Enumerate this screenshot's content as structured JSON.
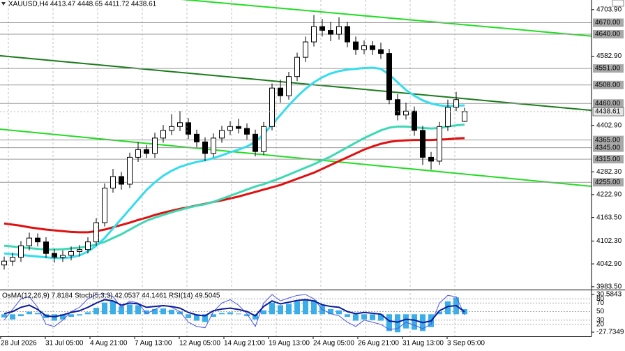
{
  "chart_data": {
    "type": "candlestick",
    "title": "XAUUSD,H4  4413.47 4448.65 4411.72 4438.61",
    "open": [
      4040,
      4050,
      4060,
      4090,
      4110,
      4100,
      4070,
      4060,
      4065,
      4075,
      4080,
      4100,
      4150,
      4240,
      4270,
      4250,
      4320,
      4340,
      4330,
      4370,
      4390,
      4400,
      4410,
      4380,
      4360,
      4330,
      4370,
      4390,
      4400,
      4395,
      4380,
      4335,
      4400,
      4500,
      4480,
      4530,
      4580,
      4620,
      4660,
      4650,
      4640,
      4660,
      4620,
      4600,
      4610,
      4600,
      4590,
      4470,
      4430,
      4440,
      4390,
      4320,
      4310,
      4400,
      4450,
      4413.47
    ],
    "high": [
      4062,
      4072,
      4102,
      4124,
      4122,
      4112,
      4082,
      4078,
      4088,
      4092,
      4112,
      4162,
      4252,
      4290,
      4282,
      4332,
      4360,
      4352,
      4384,
      4404,
      4432,
      4440,
      4422,
      4392,
      4372,
      4382,
      4402,
      4414,
      4420,
      4408,
      4392,
      4412,
      4512,
      4522,
      4542,
      4592,
      4634,
      4690,
      4680,
      4672,
      4684,
      4672,
      4634,
      4624,
      4622,
      4618,
      4602,
      4484,
      4462,
      4452,
      4402,
      4334,
      4412,
      4470,
      4490,
      4448.65
    ],
    "low": [
      4028,
      4038,
      4048,
      4078,
      4088,
      4058,
      4046,
      4048,
      4052,
      4062,
      4070,
      4090,
      4140,
      4228,
      4236,
      4240,
      4308,
      4318,
      4318,
      4358,
      4378,
      4388,
      4368,
      4346,
      4310,
      4320,
      4358,
      4378,
      4382,
      4366,
      4322,
      4326,
      4390,
      4462,
      4470,
      4518,
      4568,
      4608,
      4634,
      4622,
      4626,
      4606,
      4586,
      4588,
      4586,
      4576,
      4458,
      4416,
      4418,
      4376,
      4300,
      4288,
      4300,
      4388,
      4440,
      4411.72
    ],
    "close": [
      4050,
      4060,
      4090,
      4110,
      4100,
      4070,
      4060,
      4065,
      4075,
      4080,
      4100,
      4150,
      4240,
      4270,
      4250,
      4320,
      4340,
      4330,
      4370,
      4390,
      4400,
      4410,
      4380,
      4360,
      4330,
      4370,
      4390,
      4400,
      4395,
      4380,
      4335,
      4400,
      4500,
      4480,
      4530,
      4580,
      4620,
      4660,
      4650,
      4640,
      4660,
      4620,
      4600,
      4610,
      4600,
      4590,
      4470,
      4430,
      4440,
      4390,
      4320,
      4310,
      4400,
      4450,
      4470,
      4438.61
    ],
    "up_color": "#ffffff",
    "down_color": "#000000",
    "ylim": [
      3976,
      4729
    ],
    "yticks": [
      {
        "value": 4703.9,
        "label": "4703.90"
      },
      {
        "value": 4582.9,
        "label": "4582.90"
      },
      {
        "value": 4402.9,
        "label": "4402.90"
      },
      {
        "value": 4282.3,
        "label": "4282.30"
      },
      {
        "value": 4222.9,
        "label": "4222.90"
      },
      {
        "value": 4163.5,
        "label": "4163.50"
      },
      {
        "value": 4102.3,
        "label": "4102.30"
      },
      {
        "value": 4042.9,
        "label": "4042.90"
      },
      {
        "value": 3983.5,
        "label": "3983.50"
      }
    ],
    "levels": [
      {
        "value": 4670,
        "label": "4670.00"
      },
      {
        "value": 4640,
        "label": "4640.00"
      },
      {
        "value": 4551,
        "label": "4551.00"
      },
      {
        "value": 4508,
        "label": "4508.00"
      },
      {
        "value": 4460,
        "label": "4460.00"
      },
      {
        "value": 4365,
        "label": "4365.00"
      },
      {
        "value": 4345,
        "label": "4345.00"
      },
      {
        "value": 4315,
        "label": "4315.00"
      },
      {
        "value": 4255,
        "label": "4255.00"
      }
    ],
    "current_price": 4438.61,
    "moving_averages": [
      {
        "color": "#e01010",
        "values": [
          4148,
          4145,
          4142,
          4138,
          4135,
          4132,
          4130,
          4128,
          4126,
          4125,
          4125,
          4128,
          4132,
          4138,
          4144,
          4150,
          4157,
          4163,
          4170,
          4176,
          4181,
          4186,
          4190,
          4195,
          4199,
          4204,
          4208,
          4213,
          4218,
          4224,
          4230,
          4236,
          4242,
          4248,
          4256,
          4264,
          4272,
          4280,
          4290,
          4300,
          4310,
          4320,
          4330,
          4340,
          4348,
          4355,
          4360,
          4363,
          4364,
          4365,
          4365,
          4365,
          4366,
          4367,
          4369,
          4370
        ]
      },
      {
        "color": "#3dd9b4",
        "values": [
          4090,
          4088,
          4086,
          4084,
          4082,
          4080,
          4080,
          4081,
          4083,
          4085,
          4088,
          4093,
          4100,
          4110,
          4120,
          4132,
          4144,
          4155,
          4163,
          4170,
          4177,
          4183,
          4189,
          4194,
          4198,
          4204,
          4212,
          4220,
          4228,
          4236,
          4244,
          4250,
          4258,
          4266,
          4275,
          4284,
          4293,
          4302,
          4312,
          4322,
          4334,
          4346,
          4358,
          4370,
          4380,
          4390,
          4397,
          4400,
          4400,
          4398,
          4396,
          4395,
          4396,
          4400,
          4403,
          4405
        ]
      },
      {
        "color": "#33ddee",
        "values": [
          4070,
          4068,
          4066,
          4064,
          4062,
          4060,
          4058,
          4058,
          4060,
          4065,
          4075,
          4090,
          4110,
          4135,
          4160,
          4185,
          4210,
          4235,
          4255,
          4272,
          4285,
          4295,
          4302,
          4308,
          4312,
          4318,
          4325,
          4333,
          4340,
          4348,
          4360,
          4380,
          4405,
          4430,
          4455,
          4478,
          4498,
          4515,
          4528,
          4538,
          4544,
          4548,
          4550,
          4552,
          4553,
          4550,
          4535,
          4515,
          4495,
          4480,
          4468,
          4460,
          4455,
          4453,
          4454,
          4455
        ]
      }
    ],
    "trendlines": [
      {
        "color": "#22dd22",
        "values": [
          4773,
          4635
        ]
      },
      {
        "color": "#1a7a1a",
        "values": [
          4584,
          4442
        ]
      },
      {
        "color": "#22dd22",
        "values": [
          4393,
          4244.5
        ]
      }
    ],
    "time_labels": [
      "28 Jul 2026",
      "31 Jul 05:00",
      "4 Aug 21:00",
      "7 Aug 13:00",
      "12 Aug 05:00",
      "14 Aug 21:00",
      "19 Aug 13:00",
      "24 Aug 05:00",
      "26 Aug 21:00",
      "31 Aug 13:00",
      "3 Sep 05:00"
    ],
    "indicator": {
      "label": "OsMA(12,26,9) 7.8184 Stoch(5,3,3) 42.0537 44.1461 RSI(14) 49.5045",
      "osma_lim": [
        -27.7349,
        30.5843
      ],
      "osma_ticks": [
        30.5843,
        -27.7349
      ],
      "osc_lim": [
        0,
        100
      ],
      "osc_levels": [
        80,
        70,
        50,
        30,
        20
      ],
      "osma": {
        "color": "#3aaee8",
        "values": [
          -5,
          -8,
          -3,
          4,
          2,
          -6,
          -10,
          -8,
          -4,
          -2,
          3,
          10,
          18,
          20,
          12,
          15,
          14,
          6,
          8,
          9,
          7,
          4,
          -6,
          -10,
          -12,
          -4,
          2,
          3,
          1,
          -3,
          -8,
          6,
          18,
          14,
          16,
          20,
          22,
          22,
          14,
          8,
          6,
          -4,
          -10,
          -8,
          -9,
          -10,
          -26,
          -28,
          -22,
          -24,
          -26,
          -20,
          4,
          20,
          26,
          7.8184
        ]
      },
      "stoch": {
        "color": "#4a55e0",
        "values": [
          30,
          55,
          80,
          85,
          60,
          20,
          15,
          30,
          50,
          60,
          80,
          90,
          92,
          85,
          60,
          75,
          70,
          45,
          55,
          65,
          60,
          50,
          25,
          15,
          12,
          50,
          70,
          78,
          65,
          45,
          15,
          70,
          90,
          75,
          82,
          88,
          90,
          80,
          55,
          45,
          40,
          25,
          15,
          30,
          25,
          20,
          8,
          10,
          25,
          18,
          10,
          20,
          70,
          88,
          85,
          42.0537
        ]
      },
      "rsi": {
        "color": "#0a1a9a",
        "values": [
          45,
          50,
          60,
          65,
          55,
          40,
          38,
          42,
          48,
          52,
          60,
          70,
          78,
          75,
          65,
          70,
          68,
          60,
          62,
          64,
          62,
          58,
          48,
          42,
          40,
          52,
          56,
          58,
          55,
          50,
          40,
          62,
          75,
          68,
          72,
          76,
          78,
          75,
          66,
          62,
          60,
          50,
          45,
          48,
          46,
          44,
          28,
          25,
          32,
          30,
          24,
          28,
          52,
          62,
          64,
          49.5045
        ]
      }
    }
  }
}
